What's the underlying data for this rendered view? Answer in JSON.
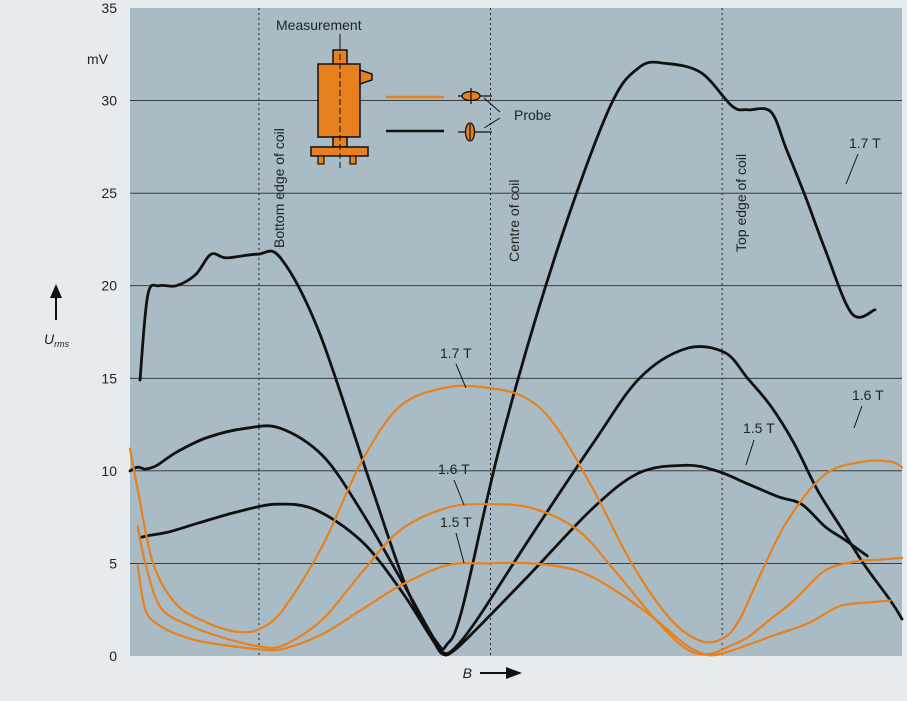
{
  "chart_data": {
    "type": "line",
    "xlabel": "B",
    "ylabel": "U",
    "ylabel_sub": "rms",
    "yunit": "mV",
    "ylim": [
      0,
      35
    ],
    "yticks": [
      0,
      5,
      10,
      15,
      20,
      25,
      30,
      35
    ],
    "grid": "horizontal",
    "colors": {
      "plot_bg": "#a9bcc5",
      "page_bg": "#e6ebee",
      "orange": "#e8801e",
      "black": "#111111",
      "grid": "#2a2a2a",
      "device": "#e8801e"
    },
    "annotations": {
      "measurement": "Measurement",
      "probe": "Probe",
      "bottom_edge": "Bottom edge of coil",
      "centre": "Centre of coil",
      "top_edge": "Top edge of coil"
    },
    "series": [
      {
        "name": "1.7 T",
        "color": "black",
        "x": [
          0.013,
          0.023,
          0.038,
          0.06,
          0.085,
          0.105,
          0.125,
          0.165,
          0.195,
          0.245,
          0.31,
          0.36,
          0.398,
          0.41,
          0.43,
          0.48,
          0.55,
          0.62,
          0.66,
          0.695,
          0.74,
          0.78,
          0.8,
          0.83,
          0.85,
          0.875,
          0.9,
          0.935,
          0.965
        ],
        "y": [
          14.9,
          19.5,
          20.0,
          20.0,
          20.6,
          21.7,
          21.5,
          21.7,
          21.5,
          17.5,
          9.5,
          3.5,
          0.7,
          0.6,
          2.5,
          11.5,
          21.5,
          29.5,
          31.8,
          32.0,
          31.5,
          29.7,
          29.5,
          29.4,
          27.4,
          24.8,
          22.0,
          18.5,
          18.7
        ]
      },
      {
        "name": "1.6 T",
        "color": "black",
        "x": [
          0.0,
          0.01,
          0.02,
          0.035,
          0.06,
          0.1,
          0.15,
          0.195,
          0.25,
          0.3,
          0.35,
          0.39,
          0.405,
          0.42,
          0.45,
          0.52,
          0.6,
          0.66,
          0.72,
          0.77,
          0.8,
          0.83,
          0.86,
          0.89,
          0.92,
          0.95,
          0.985,
          1.0
        ],
        "y": [
          10.0,
          10.2,
          10.1,
          10.3,
          11.0,
          11.8,
          12.3,
          12.3,
          10.8,
          7.8,
          4.2,
          1.2,
          0.2,
          0.4,
          2.0,
          6.5,
          11.5,
          15.0,
          16.6,
          16.4,
          15.0,
          13.5,
          11.5,
          9.0,
          7.0,
          5.0,
          3.0,
          2.0
        ]
      },
      {
        "name": "1.5 T",
        "color": "black",
        "x": [
          0.013,
          0.023,
          0.05,
          0.09,
          0.14,
          0.19,
          0.24,
          0.3,
          0.35,
          0.39,
          0.405,
          0.42,
          0.45,
          0.52,
          0.6,
          0.66,
          0.72,
          0.76,
          0.8,
          0.84,
          0.87,
          0.9,
          0.925,
          0.955
        ],
        "y": [
          6.4,
          6.5,
          6.7,
          7.2,
          7.8,
          8.2,
          7.9,
          6.2,
          3.6,
          1.0,
          0.1,
          0.3,
          1.5,
          4.5,
          8.0,
          9.9,
          10.3,
          10.0,
          9.3,
          8.6,
          8.2,
          7.0,
          6.3,
          5.4
        ]
      },
      {
        "name": "1.7 T",
        "color": "orange",
        "x": [
          0.0,
          0.01,
          0.03,
          0.06,
          0.1,
          0.14,
          0.17,
          0.2,
          0.25,
          0.3,
          0.35,
          0.41,
          0.46,
          0.51,
          0.55,
          0.6,
          0.65,
          0.7,
          0.74,
          0.77,
          0.79,
          0.81,
          0.85,
          0.9,
          0.95,
          0.985,
          1.0
        ],
        "y": [
          11.2,
          9.0,
          5.0,
          2.8,
          1.8,
          1.3,
          1.5,
          2.6,
          6.0,
          10.5,
          13.5,
          14.5,
          14.5,
          14.0,
          12.5,
          9.0,
          5.0,
          2.0,
          0.8,
          1.0,
          2.0,
          3.8,
          7.2,
          9.8,
          10.5,
          10.5,
          10.2
        ]
      },
      {
        "name": "1.6 T",
        "color": "orange",
        "x": [
          0.01,
          0.02,
          0.04,
          0.08,
          0.12,
          0.17,
          0.2,
          0.25,
          0.3,
          0.35,
          0.41,
          0.46,
          0.52,
          0.58,
          0.63,
          0.68,
          0.72,
          0.75,
          0.78,
          0.8,
          0.83,
          0.86,
          0.9,
          0.94,
          0.97,
          1.0
        ],
        "y": [
          7.0,
          5.0,
          2.6,
          1.6,
          1.0,
          0.5,
          0.6,
          2.0,
          4.5,
          6.8,
          8.0,
          8.2,
          8.0,
          6.8,
          4.5,
          2.0,
          0.4,
          0.1,
          0.6,
          1.0,
          2.0,
          3.0,
          4.6,
          5.1,
          5.2,
          5.3
        ]
      },
      {
        "name": "1.5 T",
        "color": "orange",
        "x": [
          0.01,
          0.02,
          0.04,
          0.08,
          0.12,
          0.17,
          0.2,
          0.25,
          0.3,
          0.35,
          0.41,
          0.46,
          0.52,
          0.58,
          0.63,
          0.68,
          0.72,
          0.75,
          0.78,
          0.8,
          0.84,
          0.88,
          0.92,
          0.96,
          0.985
        ],
        "y": [
          4.9,
          2.5,
          1.6,
          0.9,
          0.6,
          0.35,
          0.4,
          1.2,
          2.5,
          3.8,
          4.9,
          5.0,
          5.0,
          4.6,
          3.5,
          2.0,
          0.6,
          0.05,
          0.3,
          0.6,
          1.2,
          1.8,
          2.7,
          2.9,
          3.0
        ]
      }
    ],
    "labels": [
      "1.7 T",
      "1.6 T",
      "1.5 T",
      "1.7 T",
      "1.6 T",
      "1.5 T"
    ]
  }
}
